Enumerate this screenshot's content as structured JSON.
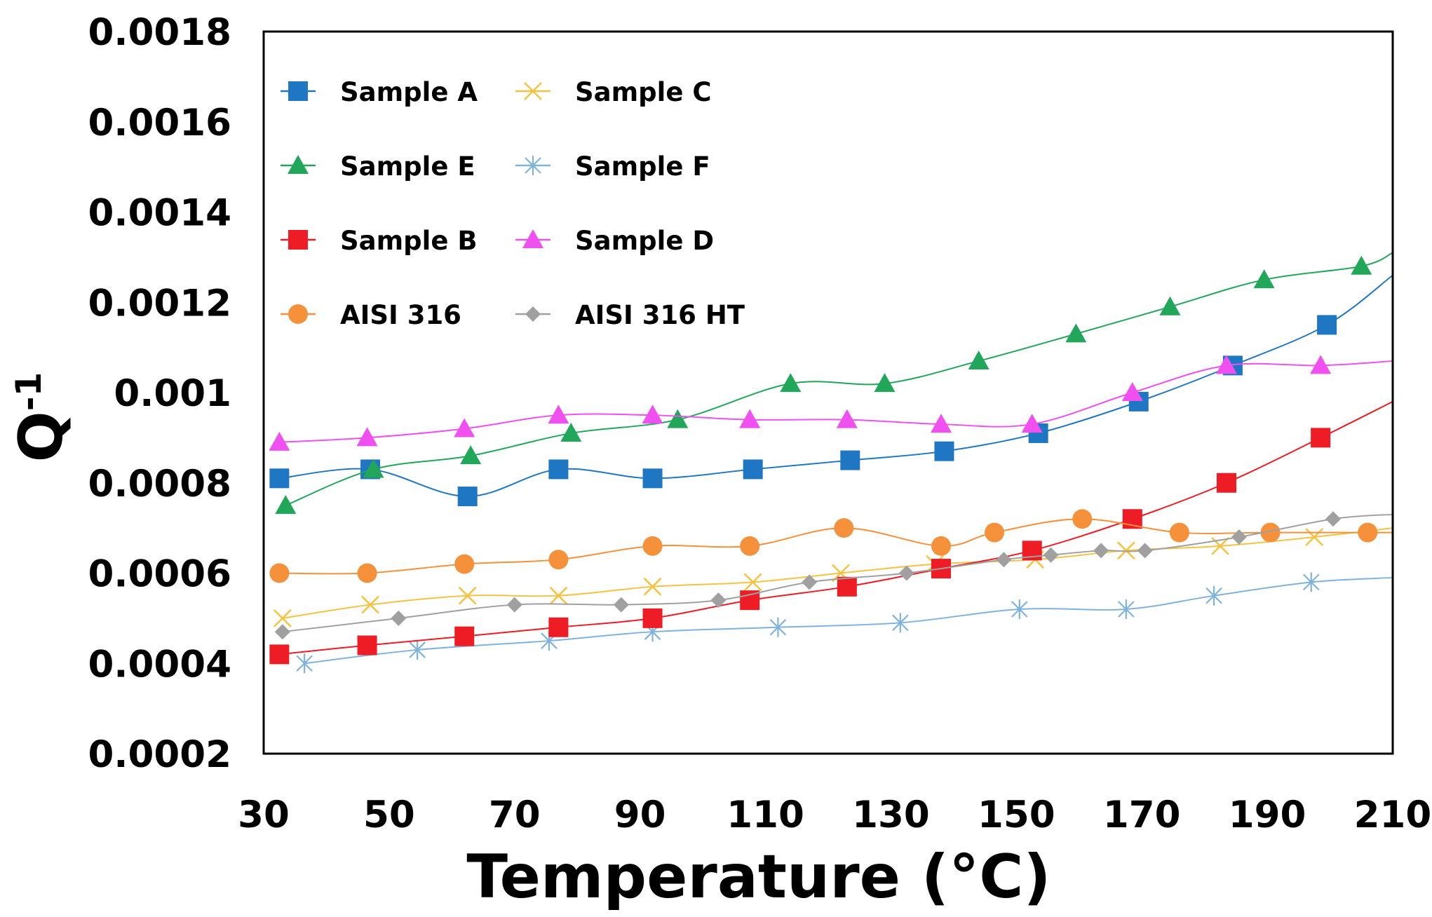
{
  "chart_data": {
    "type": "scatter",
    "title": "",
    "xlabel": "Temperature (°C)",
    "ylabel": {
      "base": "Q",
      "superscript": "-1"
    },
    "xlim": [
      30,
      210
    ],
    "ylim": [
      0.0002,
      0.0018
    ],
    "xticks": [
      "30",
      "50",
      "70",
      "90",
      "110",
      "130",
      "150",
      "170",
      "190",
      "210"
    ],
    "yticks": [
      "0.0002",
      "0.0004",
      "0.0006",
      "0.0008",
      "0.001",
      "0.0012",
      "0.0014",
      "0.0016",
      "0.0018"
    ],
    "grid": false,
    "legend_position": "top-left, inside plot, two columns",
    "series": [
      {
        "name": "Sample A",
        "color": "#1f77c4",
        "marker": "square",
        "x": [
          32.5,
          47,
          62.5,
          77,
          92,
          108,
          123.5,
          138.5,
          153.5,
          169.5,
          184.5,
          199.5,
          210
        ],
        "y": [
          0.00081,
          0.00083,
          0.00077,
          0.00083,
          0.00081,
          0.00083,
          0.00085,
          0.00087,
          0.00091,
          0.00098,
          0.00106,
          0.00115,
          0.00126
        ]
      },
      {
        "name": "Sample C",
        "color": "#f5c242",
        "marker": "x",
        "x": [
          33,
          47,
          62.5,
          77,
          92,
          108,
          122,
          137,
          153,
          167.5,
          182.5,
          197.5,
          210
        ],
        "y": [
          0.0005,
          0.00053,
          0.00055,
          0.00055,
          0.00057,
          0.00058,
          0.0006,
          0.00062,
          0.00063,
          0.00065,
          0.00066,
          0.00068,
          0.0007
        ]
      },
      {
        "name": "Sample E",
        "color": "#22a65a",
        "marker": "triangle",
        "x": [
          33.5,
          47.5,
          63,
          79,
          96,
          114,
          129,
          144,
          159.5,
          174.5,
          189.5,
          205,
          210
        ],
        "y": [
          0.00075,
          0.00083,
          0.00086,
          0.00091,
          0.00094,
          0.00102,
          0.00102,
          0.00107,
          0.00113,
          0.00119,
          0.00125,
          0.00128,
          0.00131
        ]
      },
      {
        "name": "Sample F",
        "color": "#7fb3dd",
        "marker": "asterisk",
        "x": [
          36.5,
          54.5,
          75.5,
          92,
          112,
          131.5,
          150.5,
          167.5,
          181.5,
          197,
          210
        ],
        "y": [
          0.0004,
          0.00043,
          0.00045,
          0.00047,
          0.00048,
          0.00049,
          0.00052,
          0.00052,
          0.00055,
          0.00058,
          0.00059
        ]
      },
      {
        "name": "Sample B",
        "color": "#ee1c24",
        "marker": "square",
        "x": [
          32.5,
          46.5,
          62,
          77,
          92,
          107.5,
          123,
          138,
          152.5,
          168.5,
          183.5,
          198.5,
          210
        ],
        "y": [
          0.00042,
          0.00044,
          0.00046,
          0.00048,
          0.0005,
          0.00054,
          0.00057,
          0.00061,
          0.00065,
          0.00072,
          0.0008,
          0.0009,
          0.00098
        ]
      },
      {
        "name": "Sample D",
        "color": "#f050f0",
        "marker": "triangle",
        "x": [
          32.5,
          46.5,
          62,
          77,
          92,
          107.5,
          123,
          138,
          152.5,
          168.5,
          183.5,
          198.5,
          210
        ],
        "y": [
          0.00089,
          0.0009,
          0.00092,
          0.00095,
          0.00095,
          0.00094,
          0.00094,
          0.00093,
          0.00093,
          0.001,
          0.00106,
          0.00106,
          0.00107
        ]
      },
      {
        "name": "AISI 316",
        "color": "#f5913a",
        "marker": "circle",
        "x": [
          32.5,
          46.5,
          62,
          77,
          92,
          107.5,
          122.5,
          138,
          146.5,
          160.5,
          176,
          190.5,
          206,
          210
        ],
        "y": [
          0.0006,
          0.0006,
          0.00062,
          0.00063,
          0.00066,
          0.00066,
          0.0007,
          0.00066,
          0.00069,
          0.00072,
          0.00069,
          0.00069,
          0.00069,
          0.00069
        ]
      },
      {
        "name": "AISI 316 HT",
        "color": "#a0a0a0",
        "marker": "diamond",
        "x": [
          33,
          51.5,
          70,
          87,
          102.5,
          117,
          132.5,
          148,
          155.5,
          163.5,
          170.5,
          185.5,
          200.5,
          210
        ],
        "y": [
          0.00047,
          0.0005,
          0.00053,
          0.00053,
          0.00054,
          0.00058,
          0.0006,
          0.00063,
          0.00064,
          0.00065,
          0.00065,
          0.00068,
          0.00072,
          0.00073
        ]
      }
    ]
  }
}
